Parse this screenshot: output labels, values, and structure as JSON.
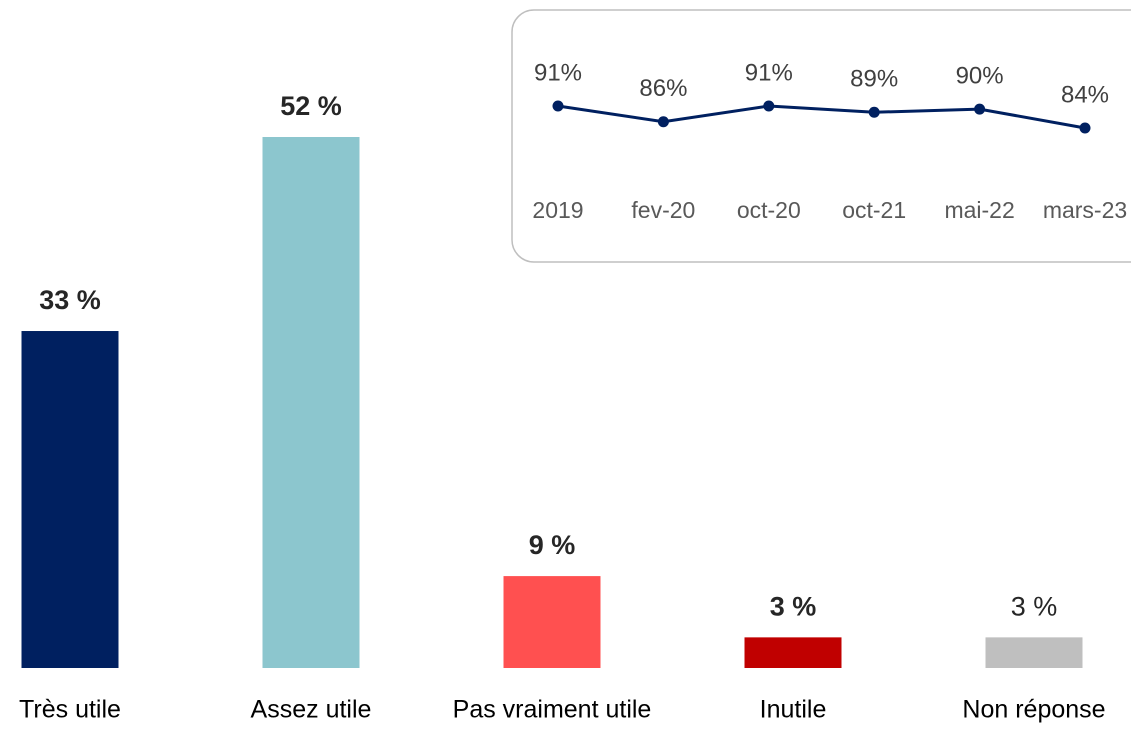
{
  "chart_data": [
    {
      "type": "bar",
      "categories": [
        "Très utile",
        "Assez utile",
        "Pas vraiment utile",
        "Inutile",
        "Non réponse"
      ],
      "values": [
        33,
        52,
        9,
        3,
        3
      ],
      "value_labels": [
        "33 %",
        "52 %",
        "9 %",
        "3 %",
        "3 %"
      ],
      "value_label_bold": [
        true,
        true,
        true,
        true,
        false
      ],
      "colors": [
        "#002060",
        "#8cc6ce",
        "#ff5050",
        "#c00000",
        "#bfbfbf"
      ],
      "ylim": [
        0,
        52
      ]
    },
    {
      "type": "line",
      "categories": [
        "2019",
        "fev-20",
        "oct-20",
        "oct-21",
        "mai-22",
        "mars-23"
      ],
      "values": [
        91,
        86,
        91,
        89,
        90,
        84
      ],
      "value_labels": [
        "91%",
        "86%",
        "91%",
        "89%",
        "90%",
        "84%"
      ],
      "color": "#002060",
      "ylim": [
        80,
        95
      ]
    }
  ]
}
